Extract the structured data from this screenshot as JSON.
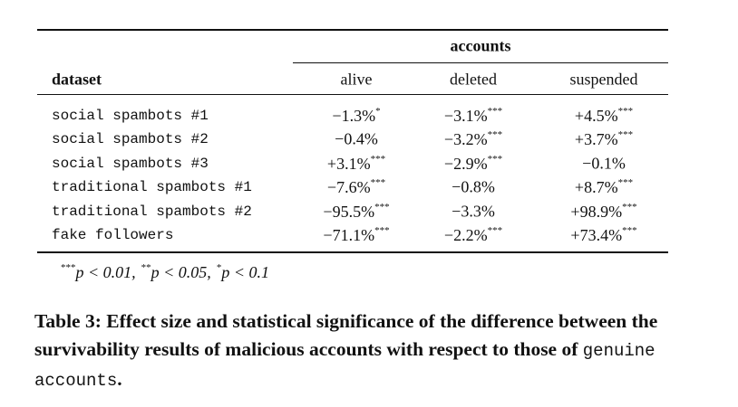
{
  "table": {
    "group_header": "accounts",
    "columns": [
      "dataset",
      "alive",
      "deleted",
      "suspended"
    ],
    "rows": [
      {
        "dataset": "social spambots #1",
        "cells": [
          {
            "value": "−1.3%",
            "sig": "*"
          },
          {
            "value": "−3.1%",
            "sig": "***"
          },
          {
            "value": "+4.5%",
            "sig": "***"
          }
        ]
      },
      {
        "dataset": "social spambots #2",
        "cells": [
          {
            "value": "−0.4%"
          },
          {
            "value": "−3.2%",
            "sig": "***"
          },
          {
            "value": "+3.7%",
            "sig": "***"
          }
        ]
      },
      {
        "dataset": "social spambots #3",
        "cells": [
          {
            "value": "+3.1%",
            "sig": "***"
          },
          {
            "value": "−2.9%",
            "sig": "***"
          },
          {
            "value": "−0.1%"
          }
        ]
      },
      {
        "dataset": "traditional spambots #1",
        "cells": [
          {
            "value": "−7.6%",
            "sig": "***"
          },
          {
            "value": "−0.8%"
          },
          {
            "value": "+8.7%",
            "sig": "***"
          }
        ]
      },
      {
        "dataset": "traditional spambots #2",
        "cells": [
          {
            "value": "−95.5%",
            "sig": "***"
          },
          {
            "value": "−3.3%"
          },
          {
            "value": "+98.9%",
            "sig": "***"
          }
        ]
      },
      {
        "dataset": "fake followers",
        "cells": [
          {
            "value": "−71.1%",
            "sig": "***"
          },
          {
            "value": "−2.2%",
            "sig": "***"
          },
          {
            "value": "+73.4%",
            "sig": "***"
          }
        ]
      }
    ],
    "footnote": [
      {
        "sig": "***",
        "text": "p < 0.01,"
      },
      {
        "sig": "**",
        "text": "p < 0.05,"
      },
      {
        "sig": "*",
        "text": "p < 0.1"
      }
    ]
  },
  "caption": {
    "label": "Table 3:",
    "text": "Effect size and statistical significance of the difference between the survivability results of malicious accounts with respect to those of",
    "code": "genuine accounts",
    "end": "."
  }
}
